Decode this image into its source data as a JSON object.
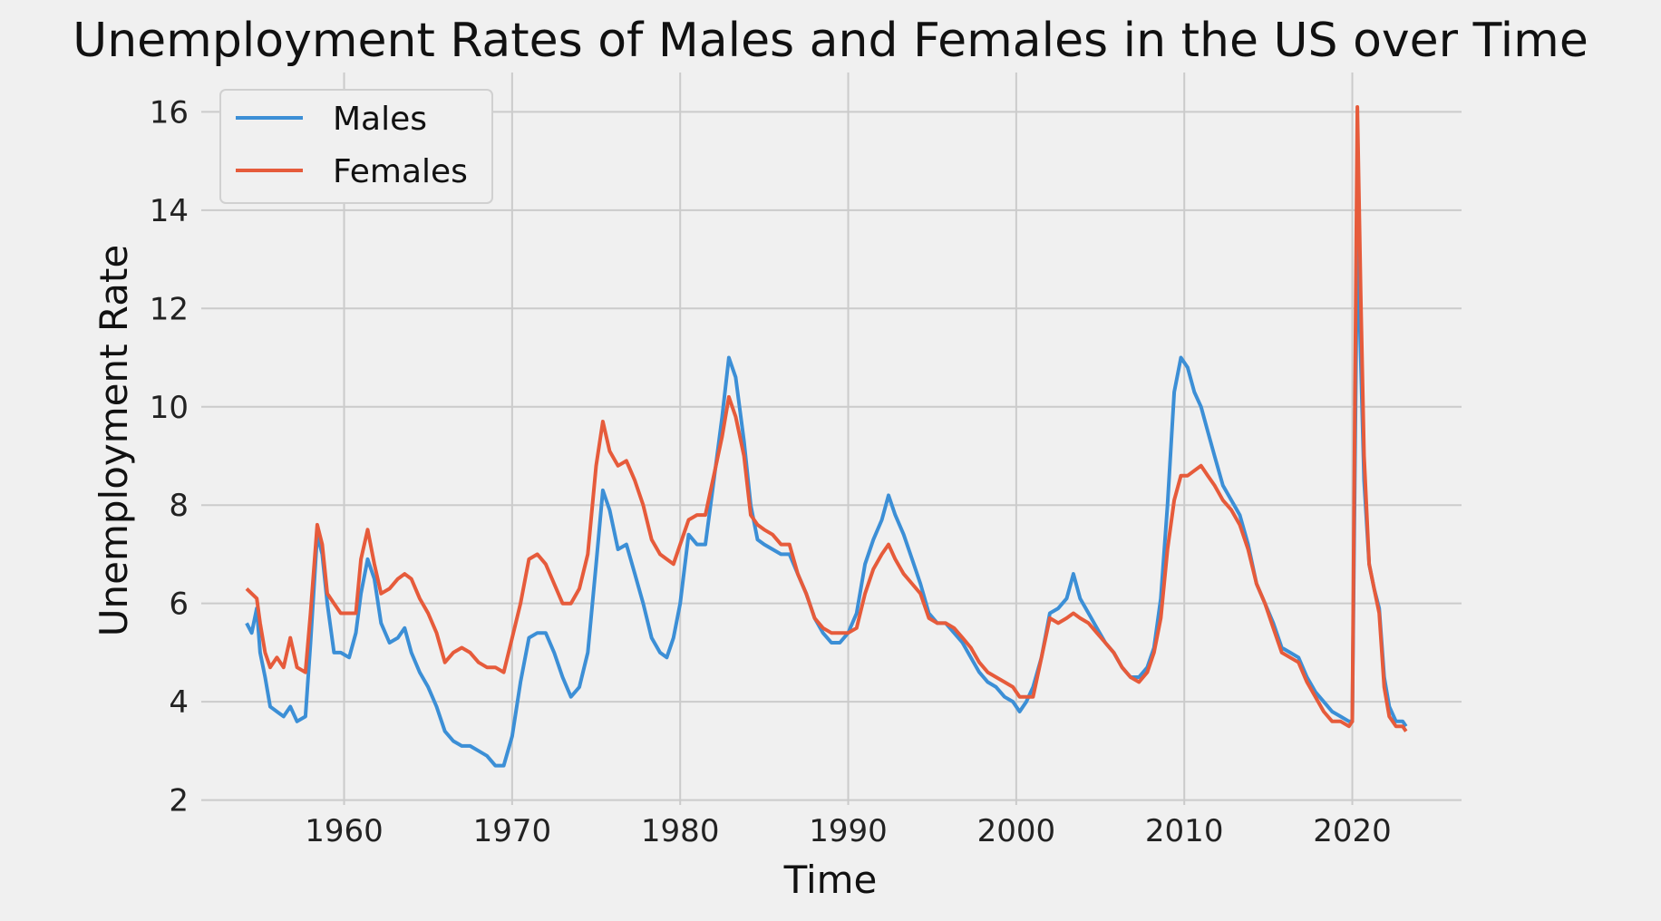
{
  "chart_data": {
    "type": "line",
    "title": "Unemployment Rates of Males and Females in the US over Time",
    "xlabel": "Time",
    "ylabel": "Unemployment Rate",
    "xlim": [
      1951.5,
      2026.5
    ],
    "ylim": [
      1.9,
      16.8
    ],
    "xticks": [
      1960,
      1970,
      1980,
      1990,
      2000,
      2010,
      2020
    ],
    "yticks": [
      2,
      4,
      6,
      8,
      10,
      12,
      14,
      16
    ],
    "grid": true,
    "legend": {
      "position": "top-left",
      "entries": [
        "Males",
        "Females"
      ]
    },
    "colors": {
      "background": "#f0f0f0",
      "grid": "#cbcbcb",
      "males": "#3c8fd6",
      "females": "#e65b3b"
    },
    "series": [
      {
        "name": "Males",
        "points": [
          [
            1954.2,
            5.6
          ],
          [
            1954.5,
            5.4
          ],
          [
            1954.8,
            5.9
          ],
          [
            1955.0,
            5.0
          ],
          [
            1955.3,
            4.5
          ],
          [
            1955.6,
            3.9
          ],
          [
            1956.0,
            3.8
          ],
          [
            1956.4,
            3.7
          ],
          [
            1956.8,
            3.9
          ],
          [
            1957.2,
            3.6
          ],
          [
            1957.7,
            3.7
          ],
          [
            1958.0,
            5.2
          ],
          [
            1958.4,
            7.4
          ],
          [
            1958.7,
            7.0
          ],
          [
            1959.0,
            6.0
          ],
          [
            1959.4,
            5.0
          ],
          [
            1959.8,
            5.0
          ],
          [
            1960.3,
            4.9
          ],
          [
            1960.7,
            5.4
          ],
          [
            1961.0,
            6.2
          ],
          [
            1961.4,
            6.9
          ],
          [
            1961.8,
            6.5
          ],
          [
            1962.2,
            5.6
          ],
          [
            1962.7,
            5.2
          ],
          [
            1963.2,
            5.3
          ],
          [
            1963.6,
            5.5
          ],
          [
            1964.0,
            5.0
          ],
          [
            1964.5,
            4.6
          ],
          [
            1965.0,
            4.3
          ],
          [
            1965.5,
            3.9
          ],
          [
            1966.0,
            3.4
          ],
          [
            1966.5,
            3.2
          ],
          [
            1967.0,
            3.1
          ],
          [
            1967.5,
            3.1
          ],
          [
            1968.0,
            3.0
          ],
          [
            1968.5,
            2.9
          ],
          [
            1969.0,
            2.7
          ],
          [
            1969.5,
            2.7
          ],
          [
            1970.0,
            3.3
          ],
          [
            1970.5,
            4.4
          ],
          [
            1971.0,
            5.3
          ],
          [
            1971.5,
            5.4
          ],
          [
            1972.0,
            5.4
          ],
          [
            1972.5,
            5.0
          ],
          [
            1973.0,
            4.5
          ],
          [
            1973.5,
            4.1
          ],
          [
            1974.0,
            4.3
          ],
          [
            1974.5,
            5.0
          ],
          [
            1975.0,
            6.8
          ],
          [
            1975.4,
            8.3
          ],
          [
            1975.8,
            7.9
          ],
          [
            1976.3,
            7.1
          ],
          [
            1976.8,
            7.2
          ],
          [
            1977.3,
            6.6
          ],
          [
            1977.8,
            6.0
          ],
          [
            1978.3,
            5.3
          ],
          [
            1978.8,
            5.0
          ],
          [
            1979.2,
            4.9
          ],
          [
            1979.6,
            5.3
          ],
          [
            1980.0,
            6.0
          ],
          [
            1980.5,
            7.4
          ],
          [
            1981.0,
            7.2
          ],
          [
            1981.5,
            7.2
          ],
          [
            1982.0,
            8.5
          ],
          [
            1982.5,
            9.8
          ],
          [
            1982.9,
            11.0
          ],
          [
            1983.3,
            10.6
          ],
          [
            1983.8,
            9.3
          ],
          [
            1984.2,
            8.0
          ],
          [
            1984.6,
            7.3
          ],
          [
            1985.0,
            7.2
          ],
          [
            1985.5,
            7.1
          ],
          [
            1986.0,
            7.0
          ],
          [
            1986.5,
            7.0
          ],
          [
            1987.0,
            6.6
          ],
          [
            1987.5,
            6.2
          ],
          [
            1988.0,
            5.7
          ],
          [
            1988.5,
            5.4
          ],
          [
            1989.0,
            5.2
          ],
          [
            1989.5,
            5.2
          ],
          [
            1990.0,
            5.4
          ],
          [
            1990.5,
            5.8
          ],
          [
            1991.0,
            6.8
          ],
          [
            1991.5,
            7.3
          ],
          [
            1992.0,
            7.7
          ],
          [
            1992.4,
            8.2
          ],
          [
            1992.8,
            7.8
          ],
          [
            1993.3,
            7.4
          ],
          [
            1993.8,
            6.9
          ],
          [
            1994.3,
            6.4
          ],
          [
            1994.8,
            5.8
          ],
          [
            1995.3,
            5.6
          ],
          [
            1995.8,
            5.6
          ],
          [
            1996.3,
            5.4
          ],
          [
            1996.8,
            5.2
          ],
          [
            1997.3,
            4.9
          ],
          [
            1997.8,
            4.6
          ],
          [
            1998.3,
            4.4
          ],
          [
            1998.8,
            4.3
          ],
          [
            1999.3,
            4.1
          ],
          [
            1999.8,
            4.0
          ],
          [
            2000.2,
            3.8
          ],
          [
            2000.6,
            4.0
          ],
          [
            2001.0,
            4.3
          ],
          [
            2001.5,
            4.9
          ],
          [
            2002.0,
            5.8
          ],
          [
            2002.5,
            5.9
          ],
          [
            2003.0,
            6.1
          ],
          [
            2003.4,
            6.6
          ],
          [
            2003.8,
            6.1
          ],
          [
            2004.3,
            5.8
          ],
          [
            2004.8,
            5.5
          ],
          [
            2005.3,
            5.2
          ],
          [
            2005.8,
            5.0
          ],
          [
            2006.3,
            4.7
          ],
          [
            2006.8,
            4.5
          ],
          [
            2007.3,
            4.5
          ],
          [
            2007.8,
            4.7
          ],
          [
            2008.2,
            5.1
          ],
          [
            2008.6,
            6.1
          ],
          [
            2009.0,
            8.0
          ],
          [
            2009.4,
            10.3
          ],
          [
            2009.8,
            11.0
          ],
          [
            2010.2,
            10.8
          ],
          [
            2010.6,
            10.3
          ],
          [
            2011.0,
            10.0
          ],
          [
            2011.4,
            9.5
          ],
          [
            2011.8,
            9.0
          ],
          [
            2012.3,
            8.4
          ],
          [
            2012.8,
            8.1
          ],
          [
            2013.3,
            7.8
          ],
          [
            2013.8,
            7.2
          ],
          [
            2014.3,
            6.4
          ],
          [
            2014.8,
            6.0
          ],
          [
            2015.3,
            5.6
          ],
          [
            2015.8,
            5.1
          ],
          [
            2016.3,
            5.0
          ],
          [
            2016.8,
            4.9
          ],
          [
            2017.3,
            4.5
          ],
          [
            2017.8,
            4.2
          ],
          [
            2018.3,
            4.0
          ],
          [
            2018.8,
            3.8
          ],
          [
            2019.3,
            3.7
          ],
          [
            2019.8,
            3.6
          ],
          [
            2020.0,
            3.6
          ],
          [
            2020.3,
            13.5
          ],
          [
            2020.5,
            11.0
          ],
          [
            2020.7,
            8.5
          ],
          [
            2021.0,
            6.8
          ],
          [
            2021.3,
            6.3
          ],
          [
            2021.6,
            5.9
          ],
          [
            2021.9,
            4.5
          ],
          [
            2022.2,
            3.9
          ],
          [
            2022.6,
            3.6
          ],
          [
            2023.0,
            3.6
          ],
          [
            2023.2,
            3.5
          ]
        ]
      },
      {
        "name": "Females",
        "points": [
          [
            1954.2,
            6.3
          ],
          [
            1954.5,
            6.2
          ],
          [
            1954.8,
            6.1
          ],
          [
            1955.0,
            5.6
          ],
          [
            1955.3,
            5.0
          ],
          [
            1955.6,
            4.7
          ],
          [
            1956.0,
            4.9
          ],
          [
            1956.4,
            4.7
          ],
          [
            1956.8,
            5.3
          ],
          [
            1957.2,
            4.7
          ],
          [
            1957.7,
            4.6
          ],
          [
            1958.0,
            5.8
          ],
          [
            1958.4,
            7.6
          ],
          [
            1958.7,
            7.2
          ],
          [
            1959.0,
            6.2
          ],
          [
            1959.4,
            6.0
          ],
          [
            1959.8,
            5.8
          ],
          [
            1960.3,
            5.8
          ],
          [
            1960.7,
            5.8
          ],
          [
            1961.0,
            6.9
          ],
          [
            1961.4,
            7.5
          ],
          [
            1961.8,
            6.8
          ],
          [
            1962.2,
            6.2
          ],
          [
            1962.7,
            6.3
          ],
          [
            1963.2,
            6.5
          ],
          [
            1963.6,
            6.6
          ],
          [
            1964.0,
            6.5
          ],
          [
            1964.5,
            6.1
          ],
          [
            1965.0,
            5.8
          ],
          [
            1965.5,
            5.4
          ],
          [
            1966.0,
            4.8
          ],
          [
            1966.5,
            5.0
          ],
          [
            1967.0,
            5.1
          ],
          [
            1967.5,
            5.0
          ],
          [
            1968.0,
            4.8
          ],
          [
            1968.5,
            4.7
          ],
          [
            1969.0,
            4.7
          ],
          [
            1969.5,
            4.6
          ],
          [
            1970.0,
            5.3
          ],
          [
            1970.5,
            6.0
          ],
          [
            1971.0,
            6.9
          ],
          [
            1971.5,
            7.0
          ],
          [
            1972.0,
            6.8
          ],
          [
            1972.5,
            6.4
          ],
          [
            1973.0,
            6.0
          ],
          [
            1973.5,
            6.0
          ],
          [
            1974.0,
            6.3
          ],
          [
            1974.5,
            7.0
          ],
          [
            1975.0,
            8.8
          ],
          [
            1975.4,
            9.7
          ],
          [
            1975.8,
            9.1
          ],
          [
            1976.3,
            8.8
          ],
          [
            1976.8,
            8.9
          ],
          [
            1977.3,
            8.5
          ],
          [
            1977.8,
            8.0
          ],
          [
            1978.3,
            7.3
          ],
          [
            1978.8,
            7.0
          ],
          [
            1979.2,
            6.9
          ],
          [
            1979.6,
            6.8
          ],
          [
            1980.0,
            7.2
          ],
          [
            1980.5,
            7.7
          ],
          [
            1981.0,
            7.8
          ],
          [
            1981.5,
            7.8
          ],
          [
            1982.0,
            8.6
          ],
          [
            1982.5,
            9.4
          ],
          [
            1982.9,
            10.2
          ],
          [
            1983.3,
            9.8
          ],
          [
            1983.8,
            9.0
          ],
          [
            1984.2,
            7.8
          ],
          [
            1984.6,
            7.6
          ],
          [
            1985.0,
            7.5
          ],
          [
            1985.5,
            7.4
          ],
          [
            1986.0,
            7.2
          ],
          [
            1986.5,
            7.2
          ],
          [
            1987.0,
            6.6
          ],
          [
            1987.5,
            6.2
          ],
          [
            1988.0,
            5.7
          ],
          [
            1988.5,
            5.5
          ],
          [
            1989.0,
            5.4
          ],
          [
            1989.5,
            5.4
          ],
          [
            1990.0,
            5.4
          ],
          [
            1990.5,
            5.5
          ],
          [
            1991.0,
            6.2
          ],
          [
            1991.5,
            6.7
          ],
          [
            1992.0,
            7.0
          ],
          [
            1992.4,
            7.2
          ],
          [
            1992.8,
            6.9
          ],
          [
            1993.3,
            6.6
          ],
          [
            1993.8,
            6.4
          ],
          [
            1994.3,
            6.2
          ],
          [
            1994.8,
            5.7
          ],
          [
            1995.3,
            5.6
          ],
          [
            1995.8,
            5.6
          ],
          [
            1996.3,
            5.5
          ],
          [
            1996.8,
            5.3
          ],
          [
            1997.3,
            5.1
          ],
          [
            1997.8,
            4.8
          ],
          [
            1998.3,
            4.6
          ],
          [
            1998.8,
            4.5
          ],
          [
            1999.3,
            4.4
          ],
          [
            1999.8,
            4.3
          ],
          [
            2000.2,
            4.1
          ],
          [
            2000.6,
            4.1
          ],
          [
            2001.0,
            4.1
          ],
          [
            2001.5,
            4.9
          ],
          [
            2002.0,
            5.7
          ],
          [
            2002.5,
            5.6
          ],
          [
            2003.0,
            5.7
          ],
          [
            2003.4,
            5.8
          ],
          [
            2003.8,
            5.7
          ],
          [
            2004.3,
            5.6
          ],
          [
            2004.8,
            5.4
          ],
          [
            2005.3,
            5.2
          ],
          [
            2005.8,
            5.0
          ],
          [
            2006.3,
            4.7
          ],
          [
            2006.8,
            4.5
          ],
          [
            2007.3,
            4.4
          ],
          [
            2007.8,
            4.6
          ],
          [
            2008.2,
            5.0
          ],
          [
            2008.6,
            5.7
          ],
          [
            2009.0,
            7.1
          ],
          [
            2009.4,
            8.1
          ],
          [
            2009.8,
            8.6
          ],
          [
            2010.2,
            8.6
          ],
          [
            2010.6,
            8.7
          ],
          [
            2011.0,
            8.8
          ],
          [
            2011.4,
            8.6
          ],
          [
            2011.8,
            8.4
          ],
          [
            2012.3,
            8.1
          ],
          [
            2012.8,
            7.9
          ],
          [
            2013.3,
            7.6
          ],
          [
            2013.8,
            7.1
          ],
          [
            2014.3,
            6.4
          ],
          [
            2014.8,
            6.0
          ],
          [
            2015.3,
            5.5
          ],
          [
            2015.8,
            5.0
          ],
          [
            2016.3,
            4.9
          ],
          [
            2016.8,
            4.8
          ],
          [
            2017.3,
            4.4
          ],
          [
            2017.8,
            4.1
          ],
          [
            2018.3,
            3.8
          ],
          [
            2018.8,
            3.6
          ],
          [
            2019.3,
            3.6
          ],
          [
            2019.8,
            3.5
          ],
          [
            2020.0,
            3.6
          ],
          [
            2020.3,
            16.1
          ],
          [
            2020.5,
            12.3
          ],
          [
            2020.7,
            9.0
          ],
          [
            2021.0,
            6.8
          ],
          [
            2021.3,
            6.3
          ],
          [
            2021.6,
            5.8
          ],
          [
            2021.9,
            4.3
          ],
          [
            2022.2,
            3.7
          ],
          [
            2022.6,
            3.5
          ],
          [
            2023.0,
            3.5
          ],
          [
            2023.2,
            3.4
          ]
        ]
      }
    ]
  }
}
